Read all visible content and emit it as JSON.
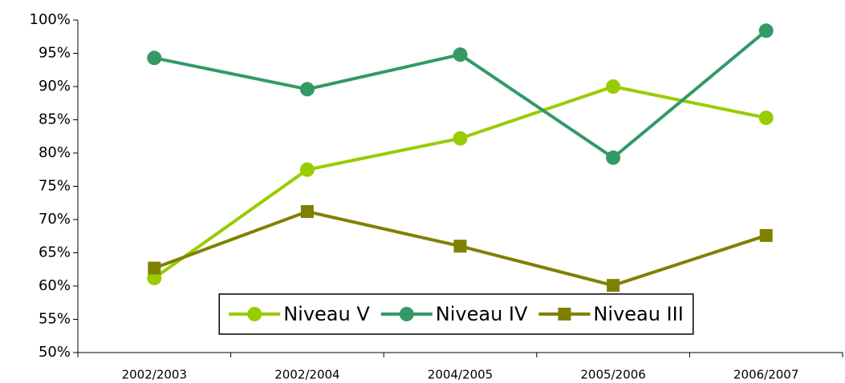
{
  "chart_data": {
    "type": "line",
    "categories": [
      "2002/2003",
      "2002/2004",
      "2004/2005",
      "2005/2006",
      "2006/2007"
    ],
    "series": [
      {
        "name": "Niveau V",
        "color": "#99cc00",
        "marker": "circle",
        "values": [
          61.2,
          77.5,
          82.2,
          90,
          85.3
        ]
      },
      {
        "name": "Niveau IV",
        "color": "#339966",
        "marker": "circle",
        "values": [
          94.3,
          89.6,
          94.8,
          79.3,
          98.4
        ]
      },
      {
        "name": "Niveau III",
        "color": "#808000",
        "marker": "square",
        "values": [
          62.7,
          71.2,
          66,
          60.1,
          67.6
        ]
      }
    ],
    "ylim": [
      50,
      100
    ],
    "yticks": [
      {
        "value": 50,
        "label": "50%"
      },
      {
        "value": 55,
        "label": "55%"
      },
      {
        "value": 60,
        "label": "60%"
      },
      {
        "value": 65,
        "label": "65%"
      },
      {
        "value": 70,
        "label": "70%"
      },
      {
        "value": 75,
        "label": "75%"
      },
      {
        "value": 80,
        "label": "80%"
      },
      {
        "value": 85,
        "label": "85%"
      },
      {
        "value": 90,
        "label": "90%"
      },
      {
        "value": 95,
        "label": "95%"
      },
      {
        "value": 100,
        "label": "100%"
      }
    ],
    "legend": "bottom"
  }
}
